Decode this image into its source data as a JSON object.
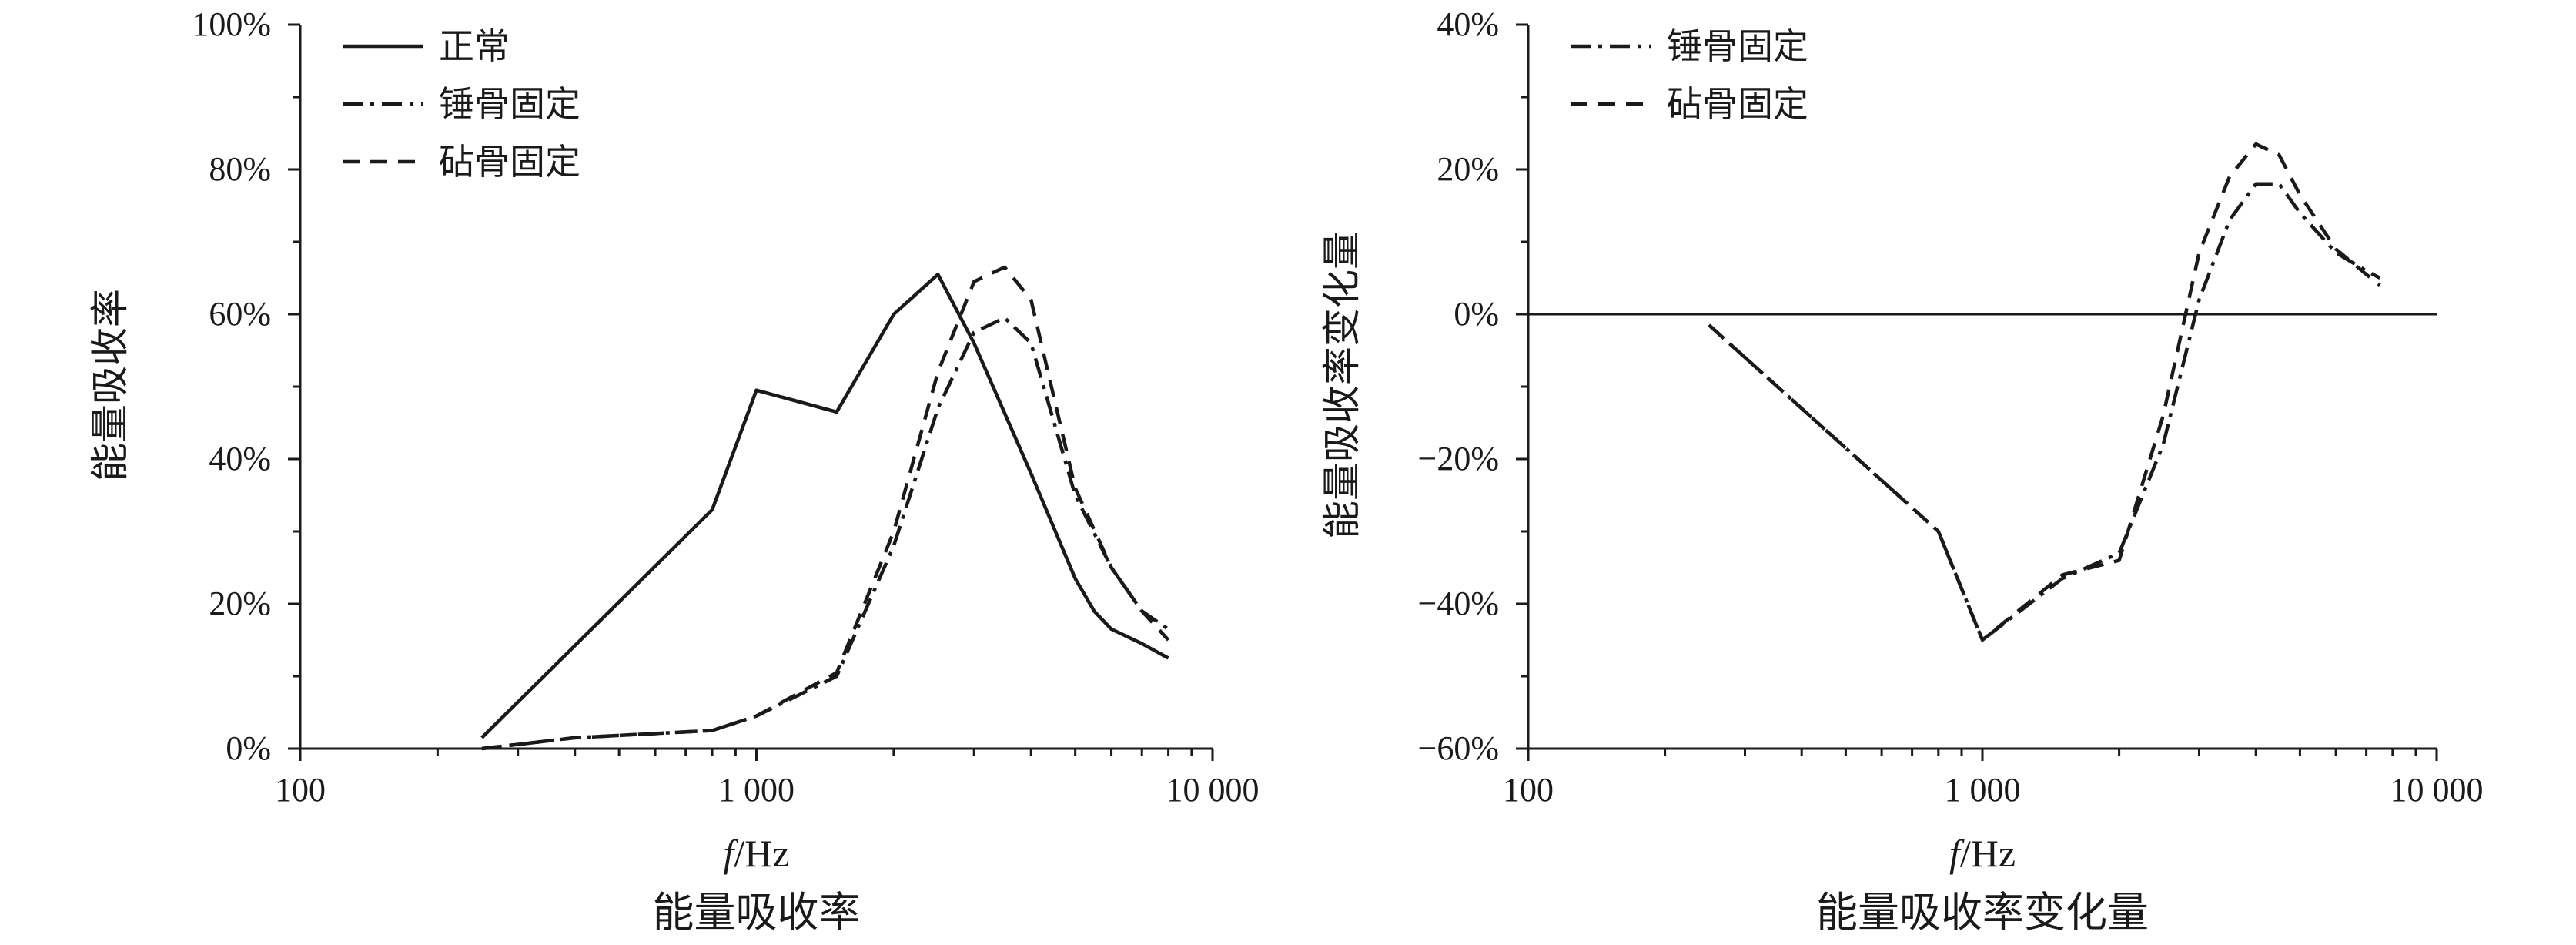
{
  "chart_data": [
    {
      "type": "line",
      "title": "",
      "caption": "能量吸收率",
      "xlabel_italic": "f",
      "xlabel_unit": "/Hz",
      "ylabel": "能量吸收率",
      "x_scale": "log",
      "xlim": [
        100,
        10000
      ],
      "ylim": [
        0,
        100
      ],
      "x_ticks": [
        {
          "value": 100,
          "label": "100"
        },
        {
          "value": 1000,
          "label": "1 000"
        },
        {
          "value": 10000,
          "label": "10 000"
        }
      ],
      "y_ticks": [
        {
          "value": 0,
          "label": "0%"
        },
        {
          "value": 20,
          "label": "20%"
        },
        {
          "value": 40,
          "label": "40%"
        },
        {
          "value": 60,
          "label": "60%"
        },
        {
          "value": 80,
          "label": "80%"
        },
        {
          "value": 100,
          "label": "100%"
        }
      ],
      "legend_position": "top-left",
      "series": [
        {
          "name": "正常",
          "style": "solid",
          "points": [
            [
              250,
              1.5
            ],
            [
              800,
              33
            ],
            [
              1000,
              49.5
            ],
            [
              1500,
              46.5
            ],
            [
              2000,
              60
            ],
            [
              2500,
              65.5
            ],
            [
              3000,
              56
            ],
            [
              4000,
              38
            ],
            [
              5000,
              23.5
            ],
            [
              5500,
              19
            ],
            [
              6000,
              16.5
            ],
            [
              7000,
              14.5
            ],
            [
              8000,
              12.5
            ]
          ]
        },
        {
          "name": "锤骨固定",
          "style": "dashdot",
          "points": [
            [
              250,
              0
            ],
            [
              400,
              1.5
            ],
            [
              800,
              2.5
            ],
            [
              1000,
              4.5
            ],
            [
              1500,
              10
            ],
            [
              2000,
              28
            ],
            [
              2500,
              47
            ],
            [
              3000,
              57.5
            ],
            [
              3500,
              59.5
            ],
            [
              4000,
              56
            ],
            [
              5000,
              35
            ],
            [
              6000,
              25
            ],
            [
              7000,
              19
            ],
            [
              8000,
              16.5
            ]
          ]
        },
        {
          "name": "砧骨固定",
          "style": "dashed",
          "points": [
            [
              250,
              0
            ],
            [
              400,
              1.5
            ],
            [
              800,
              2.5
            ],
            [
              1000,
              4.5
            ],
            [
              1500,
              10.5
            ],
            [
              2000,
              30
            ],
            [
              2500,
              52
            ],
            [
              3000,
              64.5
            ],
            [
              3500,
              66.5
            ],
            [
              4000,
              62
            ],
            [
              5000,
              36
            ],
            [
              6000,
              25
            ],
            [
              7000,
              19
            ],
            [
              8000,
              15
            ]
          ]
        }
      ]
    },
    {
      "type": "line",
      "title": "",
      "caption": "能量吸收率变化量",
      "xlabel_italic": "f",
      "xlabel_unit": "/Hz",
      "ylabel": "能量吸收率变化量",
      "x_scale": "log",
      "xlim": [
        100,
        10000
      ],
      "ylim": [
        -60,
        40
      ],
      "zero_line": true,
      "x_ticks": [
        {
          "value": 100,
          "label": "100"
        },
        {
          "value": 1000,
          "label": "1 000"
        },
        {
          "value": 10000,
          "label": "10 000"
        }
      ],
      "y_ticks": [
        {
          "value": -60,
          "label": "−60%"
        },
        {
          "value": -40,
          "label": "−40%"
        },
        {
          "value": -20,
          "label": "−20%"
        },
        {
          "value": 0,
          "label": "0%"
        },
        {
          "value": 20,
          "label": "20%"
        },
        {
          "value": 40,
          "label": "40%"
        }
      ],
      "legend_position": "top-left",
      "series": [
        {
          "name": "锤骨固定",
          "style": "dashdot",
          "points": [
            [
              250,
              -1.5
            ],
            [
              800,
              -30
            ],
            [
              1000,
              -45
            ],
            [
              1500,
              -36.5
            ],
            [
              2000,
              -33
            ],
            [
              2500,
              -18
            ],
            [
              3000,
              2
            ],
            [
              3500,
              13
            ],
            [
              4000,
              18
            ],
            [
              4500,
              18
            ],
            [
              5000,
              14
            ],
            [
              6000,
              8.5
            ],
            [
              7000,
              6
            ],
            [
              7500,
              5
            ]
          ]
        },
        {
          "name": "砧骨固定",
          "style": "dashed",
          "points": [
            [
              250,
              -1.5
            ],
            [
              800,
              -30
            ],
            [
              1000,
              -45
            ],
            [
              1500,
              -36
            ],
            [
              2000,
              -34
            ],
            [
              2500,
              -14
            ],
            [
              3000,
              8.5
            ],
            [
              3500,
              19
            ],
            [
              4000,
              23.5
            ],
            [
              4500,
              22
            ],
            [
              5000,
              16.5
            ],
            [
              6000,
              9
            ],
            [
              7000,
              5.5
            ],
            [
              7500,
              4
            ]
          ]
        }
      ]
    }
  ]
}
